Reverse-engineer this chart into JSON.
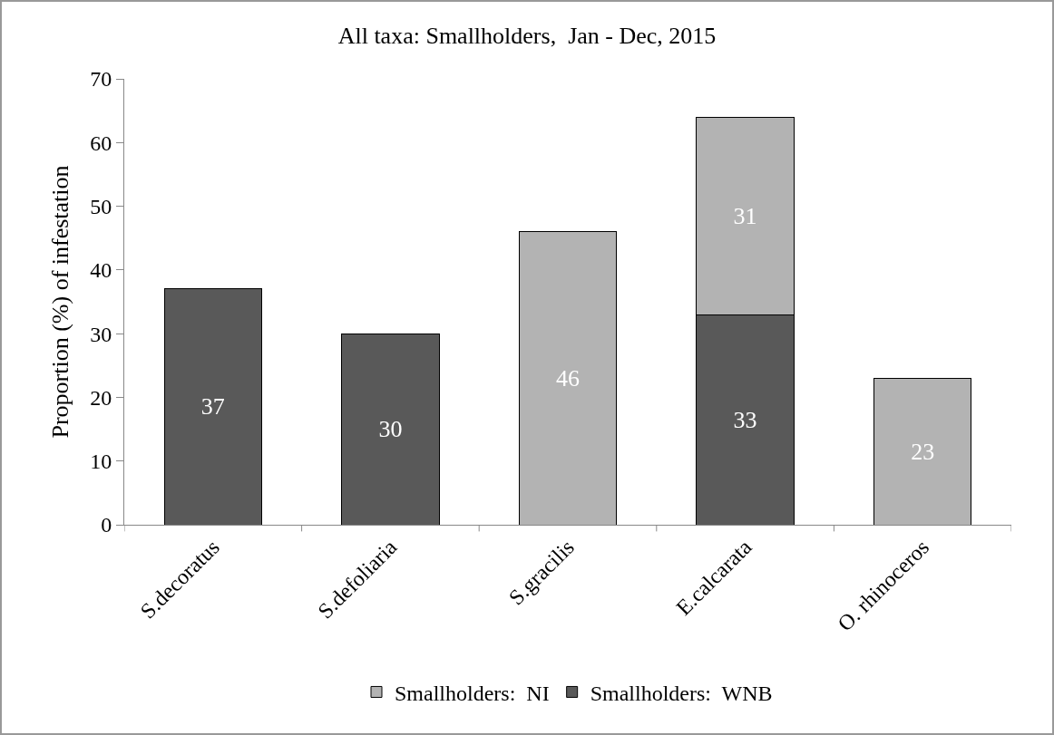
{
  "chart_data": {
    "type": "bar",
    "title": "All taxa: Smallholders,  Jan - Dec, 2015",
    "ylabel": "Proportion (%) of infestation",
    "categories": [
      "S.decoratus",
      "S.defoliaria",
      "S.gracilis",
      "E.calcarata",
      "O. rhinoceros"
    ],
    "series": [
      {
        "name": "Smallholders:  WNB",
        "color": "#595959",
        "values": [
          37,
          30,
          null,
          33,
          null
        ]
      },
      {
        "name": "Smallholders:  NI",
        "color": "#b3b3b3",
        "values": [
          null,
          null,
          46,
          31,
          23
        ]
      }
    ],
    "stacked": true,
    "data_labels": true,
    "ylim": [
      0,
      70
    ],
    "yticks": [
      0,
      10,
      20,
      30,
      40,
      50,
      60,
      70
    ],
    "grid": false,
    "legend": "bottom"
  }
}
